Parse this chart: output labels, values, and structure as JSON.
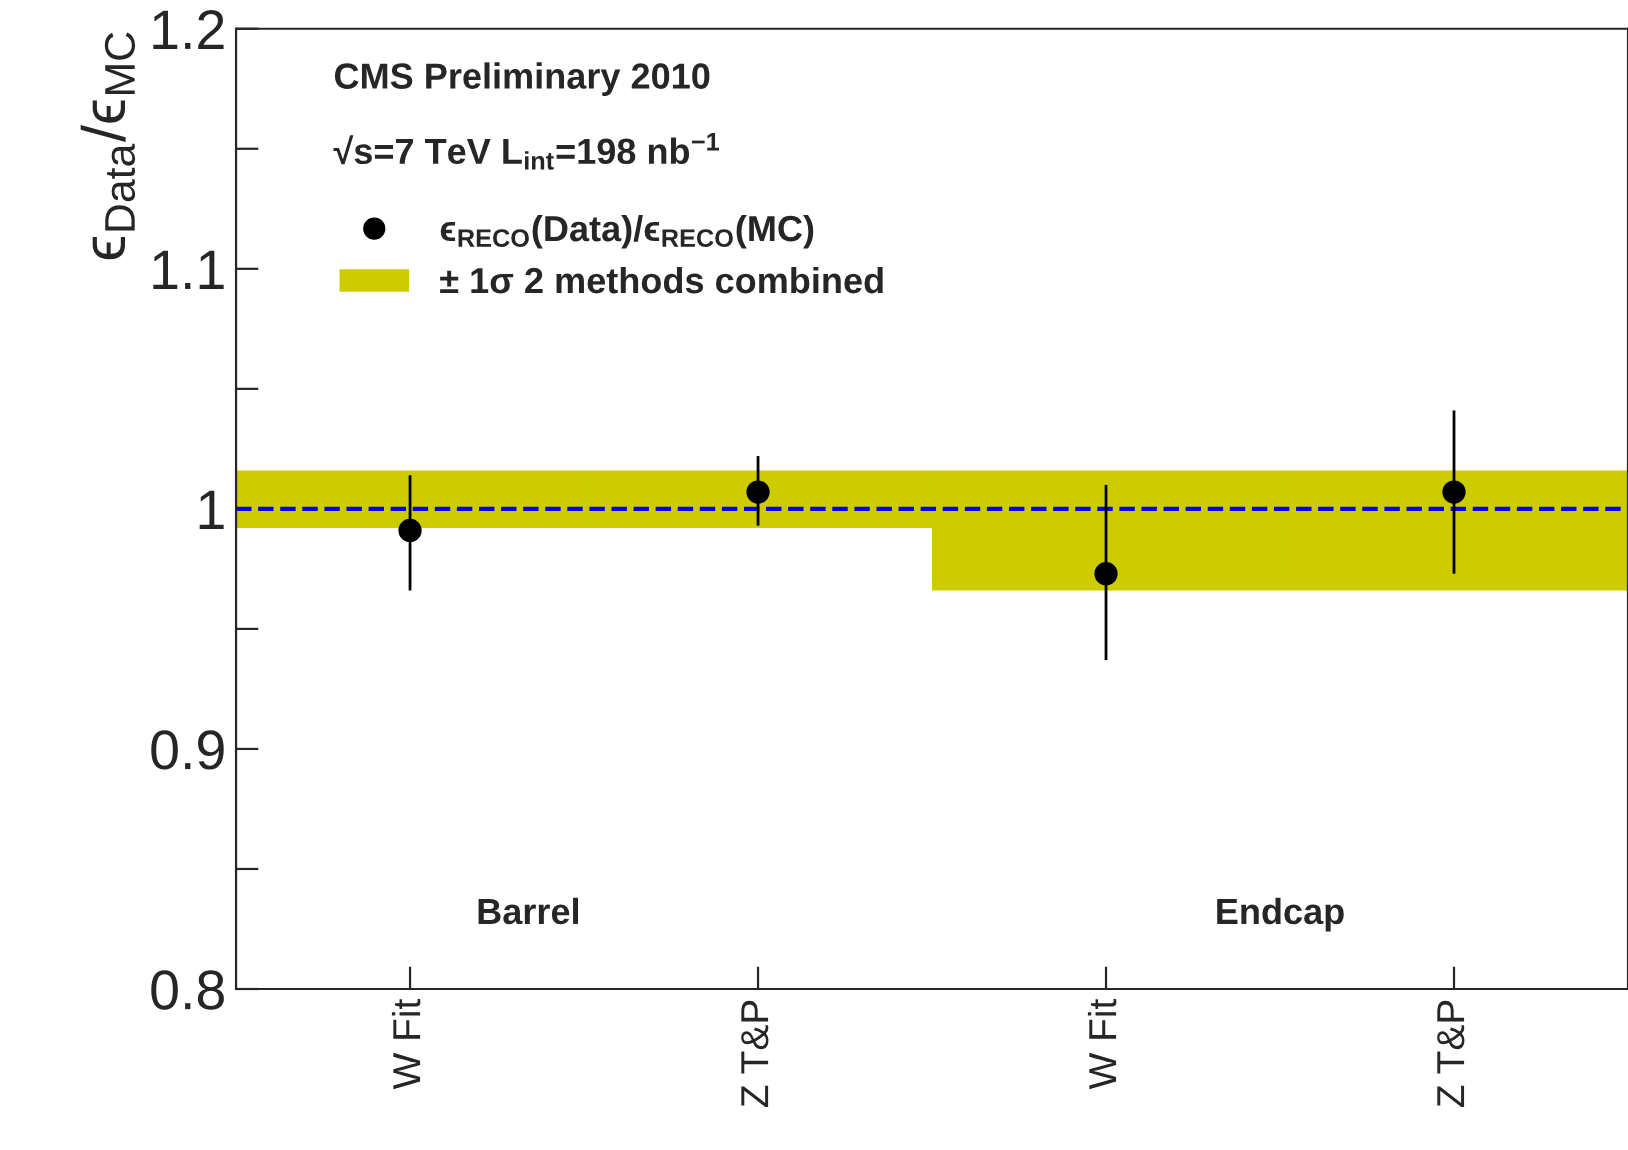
{
  "chart_data": {
    "type": "scatter",
    "ylabel": "ϵ$_{Data}$/ϵ$_{MC}$",
    "categories": [
      "W Fit",
      "Z T&P",
      "W Fit",
      "Z T&P"
    ],
    "series": [
      {
        "name": "± 1σ 2 methods combined",
        "type": "bar",
        "color": "#cccc00",
        "base": [
          0.992,
          0.992,
          0.966,
          0.966
        ],
        "values": [
          0.024,
          0.024,
          0.05,
          0.05
        ]
      },
      {
        "name": "ϵ$_{RECO}$(Data)/ϵ$_{RECO}$(MC)",
        "color": "#000000",
        "values": [
          0.991,
          1.007,
          0.973,
          1.007
        ],
        "errors": [
          [
            0.966,
            1.014
          ],
          [
            0.993,
            1.022
          ],
          [
            0.937,
            1.01
          ],
          [
            0.973,
            1.041
          ]
        ]
      }
    ],
    "ylim": [
      0.8,
      1.2
    ],
    "yticks": [
      0.8,
      {
        "value": 0.85,
        "label": null
      },
      0.9,
      {
        "value": 0.95,
        "label": null
      },
      1,
      {
        "value": 1.05,
        "label": null
      },
      1.1,
      {
        "value": 1.15,
        "label": null
      },
      1.2
    ],
    "ref_lines": [
      {
        "axis": "y",
        "value": 1,
        "color": "#0000ee",
        "line_style": "dashed"
      }
    ],
    "annotations": [
      "CMS Preliminary 2010",
      "√s=7 TeV L$_{int}$=198 nb$^{−1}$",
      "Barrel",
      "Endcap"
    ],
    "legend": "top left",
    "marker": "circle",
    "grid": false
  }
}
